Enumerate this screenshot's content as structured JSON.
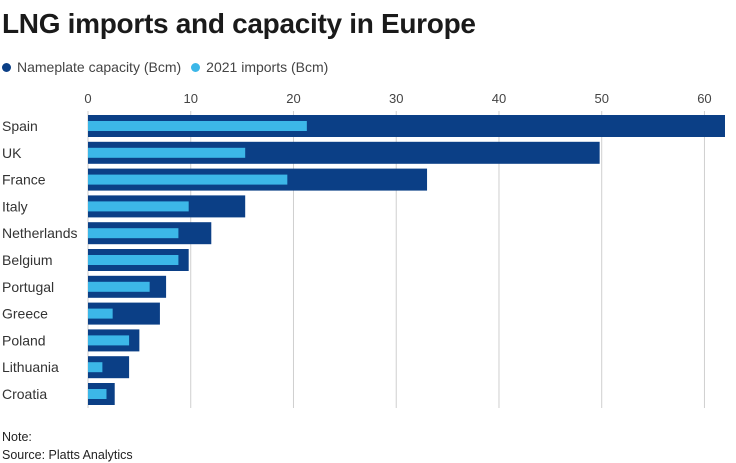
{
  "chart_data": {
    "type": "bar",
    "orientation": "horizontal",
    "title": "LNG imports and capacity in Europe",
    "categories": [
      "Spain",
      "UK",
      "France",
      "Italy",
      "Netherlands",
      "Belgium",
      "Portugal",
      "Greece",
      "Poland",
      "Lithuania",
      "Croatia"
    ],
    "series": [
      {
        "name": "Nameplate capacity (Bcm)",
        "color": "#0b3f86",
        "values": [
          62,
          49.8,
          33,
          15.3,
          12,
          9.8,
          7.6,
          7,
          5,
          4,
          2.6
        ]
      },
      {
        "name": "2021 imports (Bcm)",
        "color": "#3cb7e8",
        "values": [
          21.3,
          15.3,
          19.4,
          9.8,
          8.8,
          8.8,
          6,
          2.4,
          4,
          1.4,
          1.8
        ]
      }
    ],
    "xlim": [
      0,
      62
    ],
    "xticks": [
      0,
      10,
      20,
      30,
      40,
      50,
      60
    ],
    "grid": true,
    "legend_position": "top-left"
  },
  "footer": {
    "note": "Note:",
    "source": "Source: Platts Analytics"
  }
}
